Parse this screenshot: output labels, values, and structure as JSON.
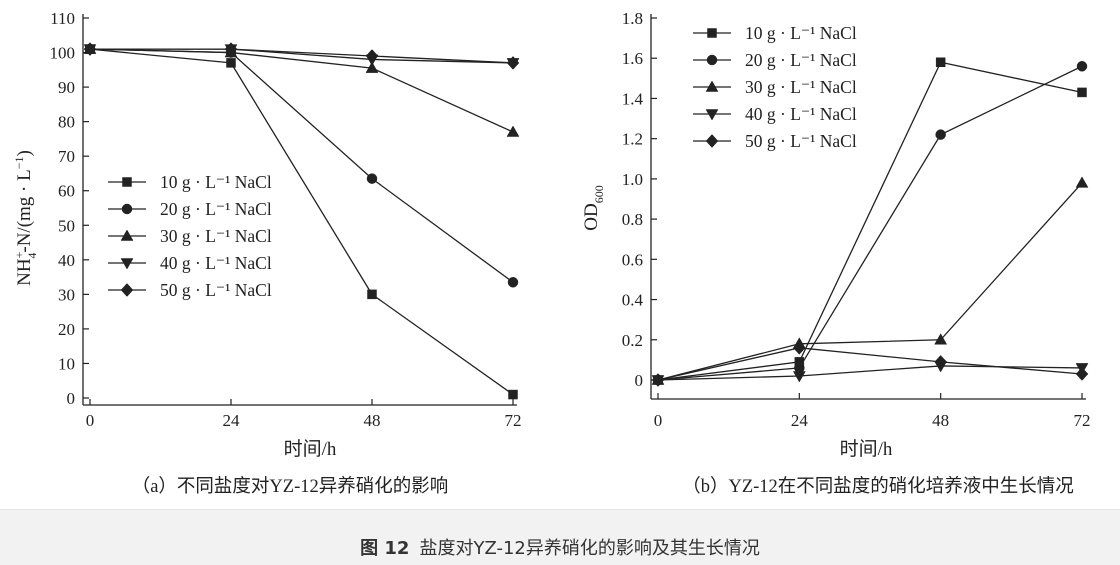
{
  "figure_caption": {
    "label": "图 12",
    "text": "盐度对YZ-12异养硝化的影响及其生长情况"
  },
  "legend_labels": [
    "10 g · L⁻¹ NaCl",
    "20 g · L⁻¹ NaCl",
    "30 g · L⁻¹ NaCl",
    "40 g · L⁻¹ NaCl",
    "50 g · L⁻¹ NaCl"
  ],
  "chart_data": [
    {
      "id": "a",
      "type": "line",
      "caption": "（a）不同盐度对YZ-12异养硝化的影响",
      "xlabel": "时间/h",
      "ylabel_main": "NH",
      "ylabel_sub": "4",
      "ylabel_sup": "+",
      "ylabel_tail": "-N/(mg · L",
      "ylabel_tail_sup": "−1",
      "ylabel_end": ")",
      "x": [
        0,
        24,
        48,
        72
      ],
      "xlim": [
        0,
        72
      ],
      "ylim": [
        0,
        110
      ],
      "xticks": [
        "0",
        "24",
        "48",
        "72"
      ],
      "yticks": [
        "0",
        "10",
        "20",
        "30",
        "40",
        "50",
        "60",
        "70",
        "80",
        "90",
        "100",
        "110"
      ],
      "legend_position": "center-left",
      "series": [
        {
          "name": "10 g · L⁻¹ NaCl",
          "marker": "square",
          "values": [
            101,
            97,
            30,
            1
          ]
        },
        {
          "name": "20 g · L⁻¹ NaCl",
          "marker": "circle",
          "values": [
            101,
            100,
            63.5,
            33.5
          ]
        },
        {
          "name": "30 g · L⁻¹ NaCl",
          "marker": "triangle-up",
          "values": [
            101,
            100,
            95.5,
            77
          ]
        },
        {
          "name": "40 g · L⁻¹ NaCl",
          "marker": "triangle-down",
          "values": [
            101,
            101,
            98,
            97
          ]
        },
        {
          "name": "50 g · L⁻¹ NaCl",
          "marker": "diamond",
          "values": [
            101,
            101,
            99,
            97
          ]
        }
      ]
    },
    {
      "id": "b",
      "type": "line",
      "caption": "（b）YZ-12在不同盐度的硝化培养液中生长情况",
      "xlabel": "时间/h",
      "ylabel_main": "OD",
      "ylabel_sub": "600",
      "x": [
        0,
        24,
        48,
        72
      ],
      "xlim": [
        0,
        72
      ],
      "ylim": [
        0,
        1.8
      ],
      "xticks": [
        "0",
        "24",
        "48",
        "72"
      ],
      "yticks": [
        "0",
        "0.2",
        "0.4",
        "0.6",
        "0.8",
        "1.0",
        "1.2",
        "1.4",
        "1.6",
        "1.8"
      ],
      "legend_position": "top-left",
      "series": [
        {
          "name": "10 g · L⁻¹ NaCl",
          "marker": "square",
          "values": [
            0,
            0.09,
            1.58,
            1.43
          ]
        },
        {
          "name": "20 g · L⁻¹ NaCl",
          "marker": "circle",
          "values": [
            0,
            0.06,
            1.22,
            1.56
          ]
        },
        {
          "name": "30 g · L⁻¹ NaCl",
          "marker": "triangle-up",
          "values": [
            0,
            0.18,
            0.2,
            0.98
          ]
        },
        {
          "name": "40 g · L⁻¹ NaCl",
          "marker": "triangle-down",
          "values": [
            0,
            0.02,
            0.07,
            0.06
          ]
        },
        {
          "name": "50 g · L⁻¹ NaCl",
          "marker": "diamond",
          "values": [
            0,
            0.16,
            0.09,
            0.03
          ]
        }
      ]
    }
  ]
}
